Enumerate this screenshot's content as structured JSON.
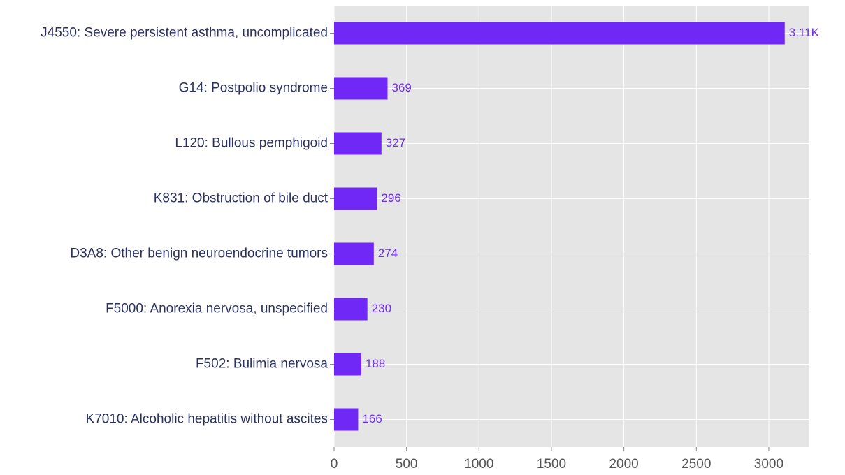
{
  "chart_data": {
    "type": "bar",
    "orientation": "horizontal",
    "categories": [
      "J4550: Severe persistent asthma, uncomplicated",
      "G14: Postpolio syndrome",
      "L120: Bullous pemphigoid",
      "K831: Obstruction of bile duct",
      "D3A8: Other benign neuroendocrine tumors",
      "F5000: Anorexia nervosa, unspecified",
      "F502: Bulimia nervosa",
      "K7010: Alcoholic hepatitis without ascites"
    ],
    "values": [
      3110,
      369,
      327,
      296,
      274,
      230,
      188,
      166
    ],
    "value_labels": [
      "3.11K",
      "369",
      "327",
      "296",
      "274",
      "230",
      "188",
      "166"
    ],
    "color": "#6f28f6",
    "xlim": [
      0,
      3280
    ],
    "xticks": [
      0,
      500,
      1000,
      1500,
      2000,
      2500,
      3000
    ],
    "grid": true
  }
}
